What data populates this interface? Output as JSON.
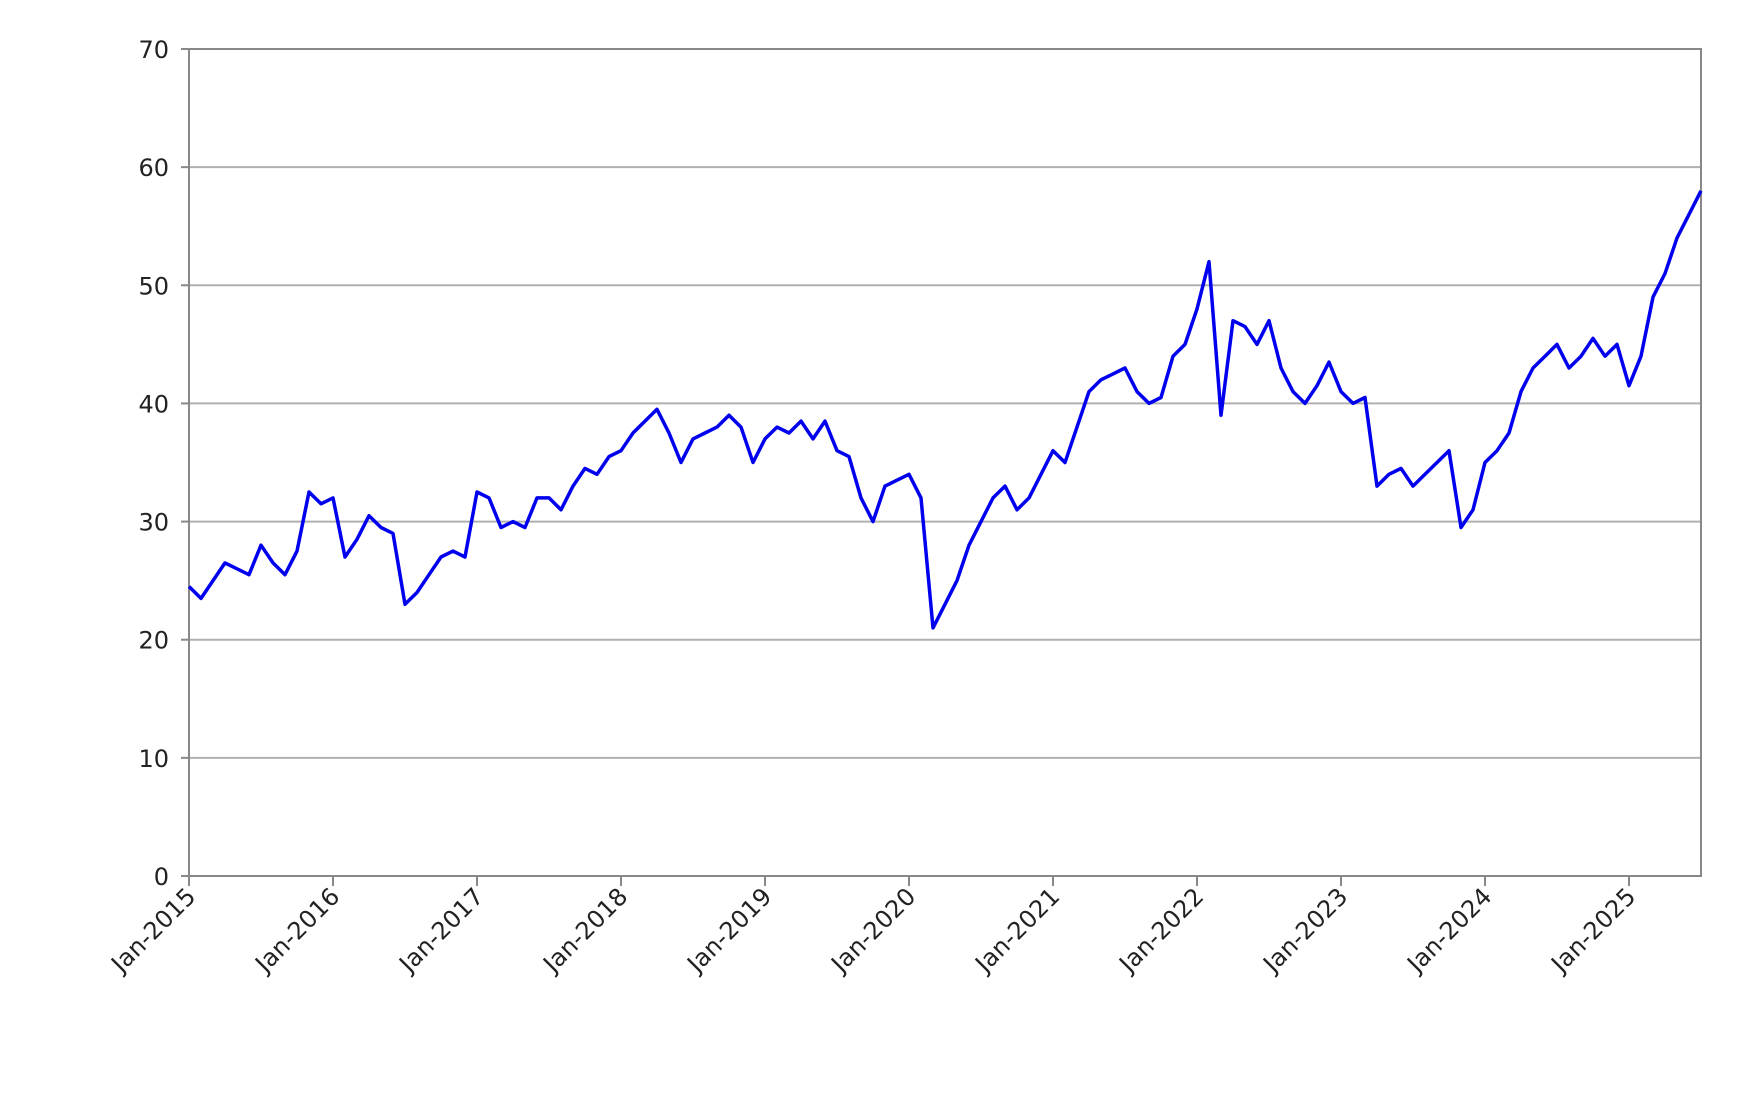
{
  "chart_data": {
    "type": "line",
    "color": "#0000ee",
    "grid": true,
    "xlim": [
      "2015-01",
      "2025-07"
    ],
    "ylim": [
      0,
      70
    ],
    "yticks": [
      0,
      10,
      20,
      30,
      40,
      50,
      60,
      70
    ],
    "xticks": [
      {
        "value": "2015-01",
        "label": "Jan-2015"
      },
      {
        "value": "2016-01",
        "label": "Jan-2016"
      },
      {
        "value": "2017-01",
        "label": "Jan-2017"
      },
      {
        "value": "2018-01",
        "label": "Jan-2018"
      },
      {
        "value": "2019-01",
        "label": "Jan-2019"
      },
      {
        "value": "2020-01",
        "label": "Jan-2020"
      },
      {
        "value": "2021-01",
        "label": "Jan-2021"
      },
      {
        "value": "2022-01",
        "label": "Jan-2022"
      },
      {
        "value": "2023-01",
        "label": "Jan-2023"
      },
      {
        "value": "2024-01",
        "label": "Jan-2024"
      },
      {
        "value": "2025-01",
        "label": "Jan-2025"
      }
    ],
    "x": [
      "2015-01",
      "2015-02",
      "2015-03",
      "2015-04",
      "2015-05",
      "2015-06",
      "2015-07",
      "2015-08",
      "2015-09",
      "2015-10",
      "2015-11",
      "2015-12",
      "2016-01",
      "2016-02",
      "2016-03",
      "2016-04",
      "2016-05",
      "2016-06",
      "2016-07",
      "2016-08",
      "2016-09",
      "2016-10",
      "2016-11",
      "2016-12",
      "2017-01",
      "2017-02",
      "2017-03",
      "2017-04",
      "2017-05",
      "2017-06",
      "2017-07",
      "2017-08",
      "2017-09",
      "2017-10",
      "2017-11",
      "2017-12",
      "2018-01",
      "2018-02",
      "2018-03",
      "2018-04",
      "2018-05",
      "2018-06",
      "2018-07",
      "2018-08",
      "2018-09",
      "2018-10",
      "2018-11",
      "2018-12",
      "2019-01",
      "2019-02",
      "2019-03",
      "2019-04",
      "2019-05",
      "2019-06",
      "2019-07",
      "2019-08",
      "2019-09",
      "2019-10",
      "2019-11",
      "2019-12",
      "2020-01",
      "2020-02",
      "2020-03",
      "2020-04",
      "2020-05",
      "2020-06",
      "2020-07",
      "2020-08",
      "2020-09",
      "2020-10",
      "2020-11",
      "2020-12",
      "2021-01",
      "2021-02",
      "2021-03",
      "2021-04",
      "2021-05",
      "2021-06",
      "2021-07",
      "2021-08",
      "2021-09",
      "2021-10",
      "2021-11",
      "2021-12",
      "2022-01",
      "2022-02",
      "2022-03",
      "2022-04",
      "2022-05",
      "2022-06",
      "2022-07",
      "2022-08",
      "2022-09",
      "2022-10",
      "2022-11",
      "2022-12",
      "2023-01",
      "2023-02",
      "2023-03",
      "2023-04",
      "2023-05",
      "2023-06",
      "2023-07",
      "2023-08",
      "2023-09",
      "2023-10",
      "2023-11",
      "2023-12",
      "2024-01",
      "2024-02",
      "2024-03",
      "2024-04",
      "2024-05",
      "2024-06",
      "2024-07",
      "2024-08",
      "2024-09",
      "2024-10",
      "2024-11",
      "2024-12",
      "2025-01",
      "2025-02",
      "2025-03",
      "2025-04",
      "2025-05",
      "2025-06",
      "2025-07"
    ],
    "values": [
      24.5,
      23.5,
      25,
      26.5,
      26,
      25.5,
      28,
      26.5,
      25.5,
      27.5,
      32.5,
      31.5,
      32,
      27,
      28.5,
      30.5,
      29.5,
      29,
      23,
      24,
      25.5,
      27,
      27.5,
      27,
      32.5,
      32,
      29.5,
      30,
      29.5,
      32,
      32,
      31,
      33,
      34.5,
      34,
      35.5,
      36,
      37.5,
      38.5,
      39.5,
      37.5,
      35,
      37,
      37.5,
      38,
      39,
      38,
      35,
      37,
      38,
      37.5,
      38.5,
      37,
      38.5,
      36,
      35.5,
      32,
      30,
      33,
      33.5,
      34,
      32,
      21,
      23,
      25,
      28,
      30,
      32,
      33,
      31,
      32,
      34,
      36,
      35,
      38,
      41,
      42,
      42.5,
      43,
      41,
      40,
      40.5,
      44,
      45,
      48,
      52,
      39,
      47,
      46.5,
      45,
      47,
      43,
      41,
      40,
      41.5,
      43.5,
      41,
      40,
      40.5,
      33,
      34,
      34.5,
      33,
      34,
      35,
      36,
      29.5,
      31,
      35,
      36,
      37.5,
      41,
      43,
      44,
      45,
      43,
      44,
      45.5,
      44,
      45,
      41.5,
      44,
      49,
      51,
      54,
      56,
      58
    ]
  }
}
